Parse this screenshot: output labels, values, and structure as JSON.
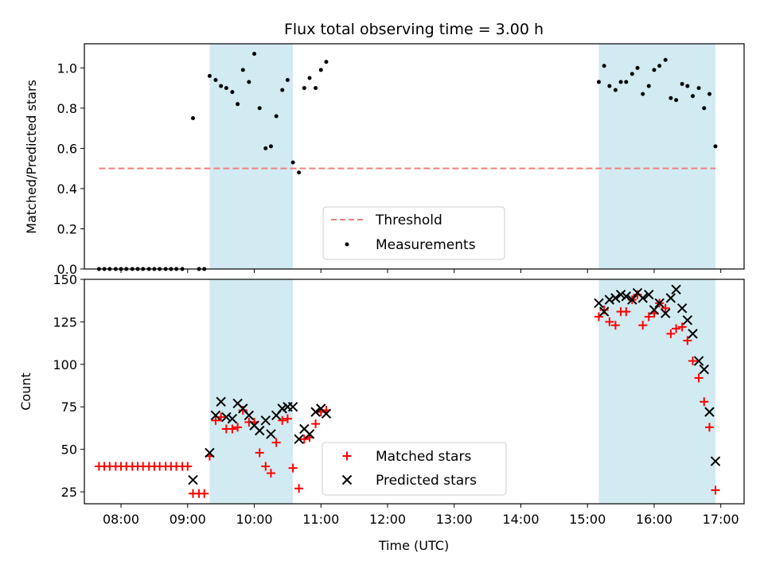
{
  "title": "Flux total observing time = 3.00 h",
  "colors": {
    "shade": "#add8e6",
    "threshold": "#f08080",
    "matched": "#ff0000",
    "predicted": "#000000",
    "measurement": "#000000"
  },
  "chart_data": [
    {
      "type": "scatter",
      "ylabel": "Matched/Predicted stars",
      "ylim": [
        0,
        1.12
      ],
      "xlim": [
        7.45,
        17.35
      ],
      "yticks": [
        0.0,
        0.2,
        0.4,
        0.6,
        0.8,
        1.0
      ],
      "ytick_labels": [
        "0.0",
        "0.2",
        "0.4",
        "0.6",
        "0.8",
        "1.0"
      ],
      "shaded_spans": [
        [
          9.33,
          10.58
        ],
        [
          15.17,
          16.92
        ]
      ],
      "threshold": {
        "label": "Threshold",
        "y": 0.5,
        "x_range": [
          7.67,
          16.92
        ]
      },
      "legend": {
        "location": "bottom-center",
        "entries": [
          "Threshold",
          "Measurements"
        ]
      },
      "measurements": {
        "name": "Measurements",
        "x": [
          7.67,
          7.75,
          7.83,
          7.92,
          8.0,
          8.08,
          8.17,
          8.25,
          8.33,
          8.42,
          8.5,
          8.58,
          8.67,
          8.75,
          8.83,
          8.92,
          9.08,
          9.17,
          9.25,
          9.33,
          9.42,
          9.5,
          9.58,
          9.67,
          9.75,
          9.83,
          9.92,
          10.0,
          10.08,
          10.17,
          10.25,
          10.33,
          10.42,
          10.5,
          10.58,
          10.67,
          10.75,
          10.83,
          10.92,
          11.0,
          11.08,
          15.17,
          15.25,
          15.33,
          15.42,
          15.5,
          15.58,
          15.67,
          15.75,
          15.83,
          15.92,
          16.0,
          16.08,
          16.17,
          16.25,
          16.33,
          16.42,
          16.5,
          16.58,
          16.67,
          16.75,
          16.83,
          16.92
        ],
        "y": [
          0,
          0,
          0,
          0,
          0,
          0,
          0,
          0,
          0,
          0,
          0,
          0,
          0,
          0,
          0,
          0,
          0.75,
          0,
          0,
          0.96,
          0.94,
          0.91,
          0.9,
          0.88,
          0.82,
          0.99,
          0.93,
          1.07,
          0.8,
          0.6,
          0.61,
          0.76,
          0.89,
          0.94,
          0.53,
          0.48,
          0.9,
          0.95,
          0.9,
          0.99,
          1.03,
          0.93,
          1.01,
          0.91,
          0.89,
          0.93,
          0.93,
          0.97,
          1.0,
          0.87,
          0.91,
          0.99,
          1.01,
          1.04,
          0.85,
          0.84,
          0.92,
          0.91,
          0.86,
          0.9,
          0.8,
          0.87,
          0.61
        ]
      }
    },
    {
      "type": "scatter",
      "xlabel": "Time (UTC)",
      "ylabel": "Count",
      "ylim": [
        18,
        150
      ],
      "xlim": [
        7.45,
        17.35
      ],
      "yticks": [
        25,
        50,
        75,
        100,
        125,
        150
      ],
      "ytick_labels": [
        "25",
        "50",
        "75",
        "100",
        "125",
        "150"
      ],
      "xticks": [
        8,
        9,
        10,
        11,
        12,
        13,
        14,
        15,
        16,
        17
      ],
      "xtick_labels": [
        "08:00",
        "09:00",
        "10:00",
        "11:00",
        "12:00",
        "13:00",
        "14:00",
        "15:00",
        "16:00",
        "17:00"
      ],
      "shaded_spans": [
        [
          9.33,
          10.58
        ],
        [
          15.17,
          16.92
        ]
      ],
      "legend": {
        "location": "bottom-center",
        "entries": [
          "Matched stars",
          "Predicted stars"
        ]
      },
      "series": [
        {
          "name": "Matched stars",
          "marker": "+",
          "x": [
            7.67,
            7.75,
            7.83,
            7.92,
            8.0,
            8.08,
            8.17,
            8.25,
            8.33,
            8.42,
            8.5,
            8.58,
            8.67,
            8.75,
            8.83,
            8.92,
            9.0,
            9.08,
            9.17,
            9.25,
            9.33,
            9.42,
            9.5,
            9.58,
            9.67,
            9.75,
            9.83,
            9.92,
            10.0,
            10.08,
            10.17,
            10.25,
            10.33,
            10.42,
            10.5,
            10.58,
            10.67,
            10.75,
            10.83,
            10.92,
            11.0,
            11.08,
            15.17,
            15.25,
            15.33,
            15.42,
            15.5,
            15.58,
            15.67,
            15.75,
            15.83,
            15.92,
            16.0,
            16.08,
            16.17,
            16.25,
            16.33,
            16.42,
            16.5,
            16.58,
            16.67,
            16.75,
            16.83,
            16.92
          ],
          "values": [
            40,
            40,
            40,
            40,
            40,
            40,
            40,
            40,
            40,
            40,
            40,
            40,
            40,
            40,
            40,
            40,
            40,
            24,
            24,
            24,
            46,
            67,
            69,
            62,
            62,
            63,
            73,
            66,
            66,
            48,
            40,
            36,
            54,
            67,
            68,
            39,
            27,
            56,
            57,
            65,
            72,
            73,
            128,
            132,
            125,
            123,
            131,
            131,
            138,
            141,
            123,
            128,
            130,
            136,
            133,
            118,
            121,
            122,
            114,
            102,
            92,
            78,
            63,
            26
          ]
        },
        {
          "name": "Predicted stars",
          "marker": "x",
          "x": [
            9.08,
            9.33,
            9.42,
            9.5,
            9.58,
            9.67,
            9.75,
            9.83,
            9.92,
            10.0,
            10.08,
            10.17,
            10.25,
            10.33,
            10.42,
            10.5,
            10.58,
            10.67,
            10.75,
            10.83,
            10.92,
            11.0,
            11.08,
            15.17,
            15.25,
            15.33,
            15.42,
            15.5,
            15.58,
            15.67,
            15.75,
            15.83,
            15.92,
            16.0,
            16.08,
            16.17,
            16.25,
            16.33,
            16.42,
            16.5,
            16.58,
            16.67,
            16.75,
            16.83,
            16.92
          ],
          "values": [
            32,
            48,
            70,
            78,
            69,
            68,
            77,
            74,
            70,
            64,
            61,
            67,
            59,
            70,
            74,
            75,
            75,
            56,
            62,
            59,
            72,
            74,
            71,
            136,
            131,
            138,
            139,
            141,
            140,
            138,
            142,
            139,
            141,
            132,
            136,
            130,
            139,
            144,
            133,
            126,
            118,
            102,
            97,
            72,
            43
          ]
        }
      ]
    }
  ]
}
